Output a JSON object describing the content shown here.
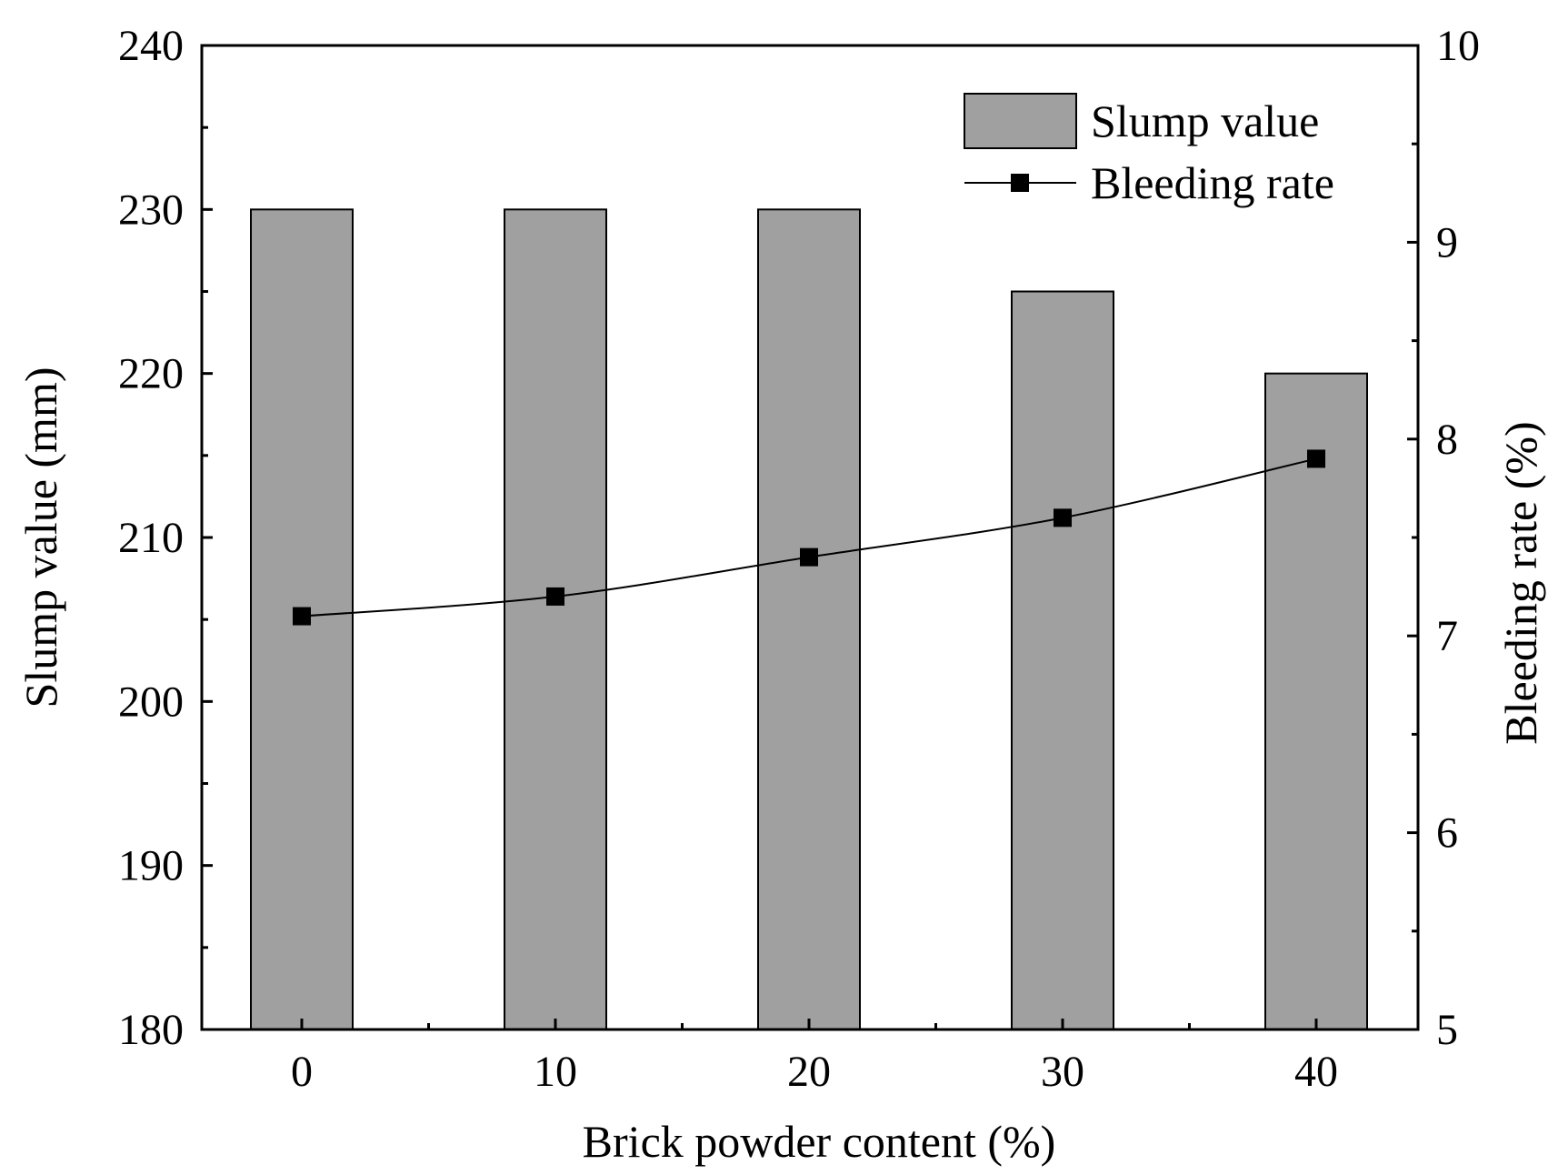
{
  "chart_data": {
    "type": "bar",
    "title": "",
    "xlabel": "Brick powder content (%)",
    "ylabel": "Slump value (mm)",
    "y2label": "Bleeding rate (%)",
    "categories": [
      "0",
      "10",
      "20",
      "30",
      "40"
    ],
    "ylim": [
      180,
      240
    ],
    "y2lim": [
      5,
      10
    ],
    "yticks": [
      180,
      190,
      200,
      210,
      220,
      230,
      240
    ],
    "y2ticks": [
      5,
      6,
      7,
      8,
      9,
      10
    ],
    "series": [
      {
        "name": "Slump value",
        "kind": "bar",
        "axis": "left",
        "values": [
          230,
          230,
          230,
          225,
          220
        ]
      },
      {
        "name": "Bleeding rate",
        "kind": "line",
        "marker": "square",
        "axis": "right",
        "values": [
          7.1,
          7.2,
          7.4,
          7.6,
          7.9
        ]
      }
    ],
    "legend": {
      "position": "top-right"
    },
    "grid": false,
    "colors": {
      "bar_fill": "#a0a0a0",
      "bar_edge": "#000000",
      "line": "#000000"
    }
  }
}
